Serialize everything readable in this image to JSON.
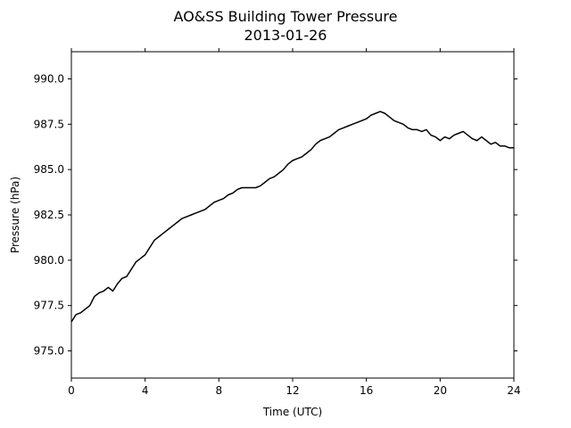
{
  "chart_data": {
    "type": "line",
    "title": "AO&SS Building Tower Pressure",
    "subtitle": "2013-01-26",
    "xlabel": "Time (UTC)",
    "ylabel": "Pressure (hPa)",
    "xlim": [
      0,
      24
    ],
    "ylim": [
      973.5,
      991.5
    ],
    "xticks": [
      0,
      4,
      8,
      12,
      16,
      20,
      24
    ],
    "xtick_labels": [
      "0",
      "4",
      "8",
      "12",
      "16",
      "20",
      "24"
    ],
    "yticks": [
      975.0,
      977.5,
      980.0,
      982.5,
      985.0,
      987.5,
      990.0
    ],
    "ytick_labels": [
      "975.0",
      "977.5",
      "980.0",
      "982.5",
      "985.0",
      "987.5",
      "990.0"
    ],
    "grid": false,
    "legend": "none",
    "line_color": "#000000",
    "series": [
      {
        "x": [
          0,
          0.25,
          0.5,
          0.75,
          1.0,
          1.25,
          1.5,
          1.75,
          2.0,
          2.25,
          2.5,
          2.75,
          3.0,
          3.25,
          3.5,
          3.75,
          4.0,
          4.25,
          4.5,
          4.75,
          5.0,
          5.25,
          5.5,
          5.75,
          6.0,
          6.25,
          6.5,
          6.75,
          7.0,
          7.25,
          7.5,
          7.75,
          8.0,
          8.25,
          8.5,
          8.75,
          9.0,
          9.25,
          9.5,
          9.75,
          10.0,
          10.25,
          10.5,
          10.75,
          11.0,
          11.25,
          11.5,
          11.75,
          12.0,
          12.25,
          12.5,
          12.75,
          13.0,
          13.25,
          13.5,
          13.75,
          14.0,
          14.25,
          14.5,
          14.75,
          15.0,
          15.25,
          15.5,
          15.75,
          16.0,
          16.25,
          16.5,
          16.75,
          17.0,
          17.25,
          17.5,
          17.75,
          18.0,
          18.25,
          18.5,
          18.75,
          19.0,
          19.25,
          19.5,
          19.75,
          20.0,
          20.25,
          20.5,
          20.75,
          21.0,
          21.25,
          21.5,
          21.75,
          22.0,
          22.25,
          22.5,
          22.75,
          23.0,
          23.25,
          23.5,
          23.75,
          24.0
        ],
        "values": [
          976.6,
          977.0,
          977.1,
          977.3,
          977.5,
          978.0,
          978.2,
          978.3,
          978.5,
          978.3,
          978.7,
          979.0,
          979.1,
          979.5,
          979.9,
          980.1,
          980.3,
          980.7,
          981.1,
          981.3,
          981.5,
          981.7,
          981.9,
          982.1,
          982.3,
          982.4,
          982.5,
          982.6,
          982.7,
          982.8,
          983.0,
          983.2,
          983.3,
          983.4,
          983.6,
          983.7,
          983.9,
          984.0,
          984.0,
          984.0,
          984.0,
          984.1,
          984.3,
          984.5,
          984.6,
          984.8,
          985.0,
          985.3,
          985.5,
          985.6,
          985.7,
          985.9,
          986.1,
          986.4,
          986.6,
          986.7,
          986.8,
          987.0,
          987.2,
          987.3,
          987.4,
          987.5,
          987.6,
          987.7,
          987.8,
          988.0,
          988.1,
          988.2,
          988.1,
          987.9,
          987.7,
          987.6,
          987.5,
          987.3,
          987.2,
          987.2,
          987.1,
          987.2,
          986.9,
          986.8,
          986.6,
          986.8,
          986.7,
          986.9,
          987.0,
          987.1,
          986.9,
          986.7,
          986.6,
          986.8,
          986.6,
          986.4,
          986.5,
          986.3,
          986.3,
          986.2,
          986.2
        ]
      }
    ]
  }
}
